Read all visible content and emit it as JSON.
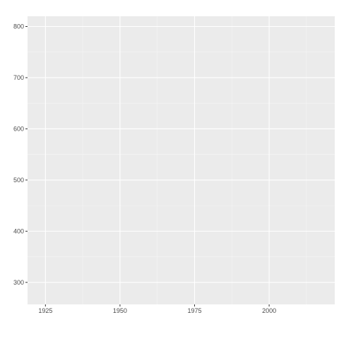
{
  "chart_data": {
    "type": "scatter",
    "title": "",
    "xlabel": "",
    "ylabel": "",
    "xlim": [
      1919,
      2022
    ],
    "ylim": [
      257,
      820
    ],
    "x_ticks": [
      1925,
      1950,
      1975,
      2000
    ],
    "x_tick_labels": [
      "1925",
      "1950",
      "1975",
      "2000"
    ],
    "x_minor_ticks": [
      1937.5,
      1962.5,
      1987.5,
      2012.5
    ],
    "y_ticks": [
      300,
      400,
      500,
      600,
      700,
      800
    ],
    "y_tick_labels": [
      "300",
      "400",
      "500",
      "600",
      "700",
      "800"
    ],
    "y_minor_ticks": [
      350,
      450,
      550,
      650,
      750
    ],
    "series": [],
    "grid": true,
    "legend": "none",
    "colors": {
      "panel_background": "#EBEBEB",
      "grid_major": "#FFFFFF",
      "grid_minor": "#F5F5F5",
      "tick_mark": "#333333",
      "tick_label": "#4D4D4D",
      "page_background": "#FFFFFF"
    }
  }
}
